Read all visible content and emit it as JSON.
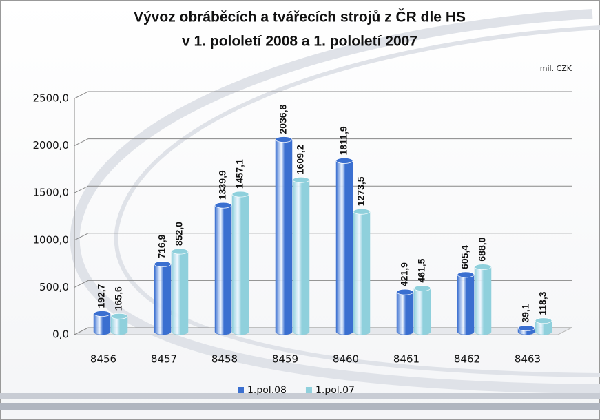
{
  "chart_data": {
    "type": "bar",
    "title": [
      "Vývoz obráběcích a tvářecích strojů z ČR dle HS",
      "v 1. pololetí 2008 a 1. pololetí 2007"
    ],
    "annotation": "mil. CZK",
    "categories": [
      "8456",
      "8457",
      "8458",
      "8459",
      "8460",
      "8461",
      "8462",
      "8463"
    ],
    "series": [
      {
        "name": "1.pol.08",
        "color": "#3a6fd0",
        "values": [
          192.7,
          716.9,
          1339.9,
          2036.8,
          1811.9,
          421.9,
          605.4,
          39.1
        ],
        "value_labels": [
          "192,7",
          "716,9",
          "1339,9",
          "2036,8",
          "1811,9",
          "421,9",
          "605,4",
          "39,1"
        ]
      },
      {
        "name": "1.pol.07",
        "color": "#8fd0dc",
        "values": [
          165.6,
          852.0,
          1457.1,
          1609.2,
          1273.5,
          461.5,
          688.0,
          118.3
        ],
        "value_labels": [
          "165,6",
          "852,0",
          "1457,1",
          "1609,2",
          "1273,5",
          "461,5",
          "688,0",
          "118,3"
        ]
      }
    ],
    "ylim": [
      0,
      2500
    ],
    "yticks": [
      {
        "value": 0,
        "label": "0,0"
      },
      {
        "value": 500,
        "label": "500,0"
      },
      {
        "value": 1000,
        "label": "1000,0"
      },
      {
        "value": 1500,
        "label": "1500,0"
      },
      {
        "value": 2000,
        "label": "2000,0"
      },
      {
        "value": 2500,
        "label": "2500,0"
      }
    ],
    "grid": true,
    "legend": "bottom"
  }
}
